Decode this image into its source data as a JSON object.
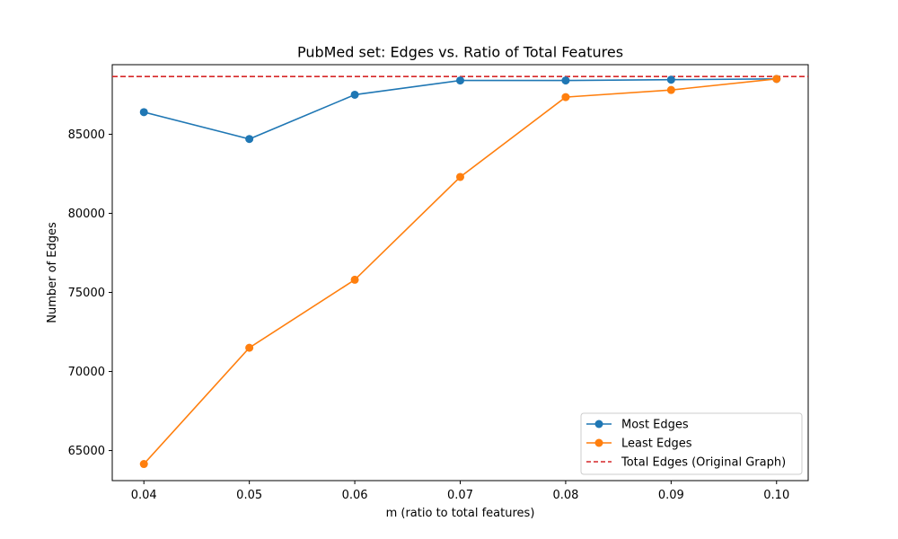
{
  "chart_data": {
    "type": "line",
    "title": "PubMed set: Edges vs. Ratio of Total Features",
    "xlabel": "m (ratio to total features)",
    "ylabel": "Number of Edges",
    "x": [
      0.04,
      0.05,
      0.06,
      0.07,
      0.08,
      0.09,
      0.1
    ],
    "x_tick_labels": [
      "0.04",
      "0.05",
      "0.06",
      "0.07",
      "0.08",
      "0.09",
      "0.10"
    ],
    "y_ticks": [
      65000,
      70000,
      75000,
      80000,
      85000
    ],
    "y_tick_labels": [
      "65000",
      "70000",
      "75000",
      "80000",
      "85000"
    ],
    "xlim": [
      0.037,
      0.103
    ],
    "ylim": [
      63100,
      89400
    ],
    "grid": false,
    "legend_position": "lower-right",
    "series": [
      {
        "name": "Most Edges",
        "color": "#1f77b4",
        "marker": "circle",
        "values": [
          86400,
          84700,
          87500,
          88400,
          88400,
          88450,
          88500
        ]
      },
      {
        "name": "Least Edges",
        "color": "#ff7f0e",
        "marker": "circle",
        "values": [
          64150,
          71500,
          75800,
          82300,
          87350,
          87800,
          88500
        ]
      }
    ],
    "reference_lines": [
      {
        "name": "Total Edges (Original Graph)",
        "color": "#d62728",
        "style": "dashed",
        "y": 88650
      }
    ]
  }
}
